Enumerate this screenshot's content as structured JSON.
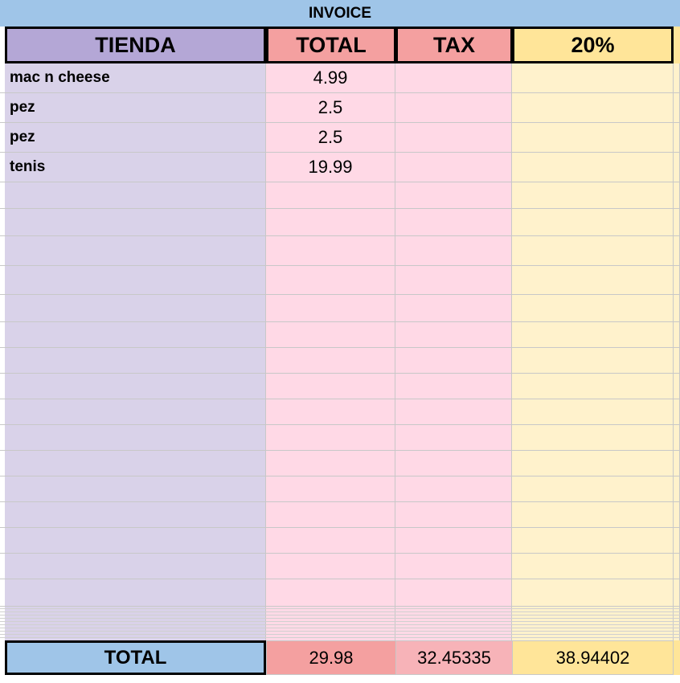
{
  "title": "INVOICE",
  "table": {
    "headers": [
      "TIENDA",
      "TOTAL",
      "TAX",
      "20%"
    ],
    "rows": [
      [
        "mac n cheese",
        4.99
      ],
      [
        "pez",
        2.5
      ],
      [
        "pez",
        2.5
      ],
      [
        "tenis",
        19.99
      ]
    ],
    "total_row": [
      "TOTAL",
      29.98,
      32.45335,
      38.94402
    ]
  }
}
